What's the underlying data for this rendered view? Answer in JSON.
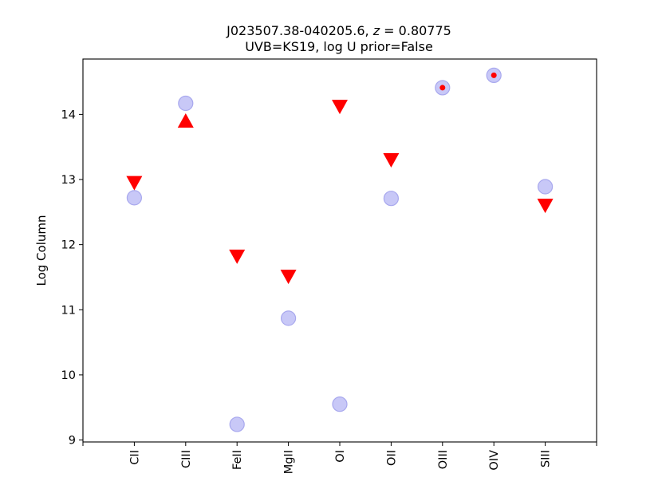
{
  "chart_data": {
    "type": "scatter",
    "title_prefix": "J023507.38-040205.6, ",
    "title_z_symbol": "z",
    "title_z_value": " = 0.80775",
    "subtitle": "UVB=KS19, log U prior=False",
    "xlabel": "",
    "ylabel": "Log Column",
    "categories": [
      "CII",
      "CIII",
      "FeII",
      "MgII",
      "OI",
      "OII",
      "OIII",
      "OIV",
      "SIII"
    ],
    "xlim": [
      -1,
      9
    ],
    "ylim": [
      8.97,
      14.85
    ],
    "yticks": [
      9,
      10,
      11,
      12,
      13,
      14
    ],
    "grid": false,
    "series": [
      {
        "marker": "circle",
        "color": "#c8c8f7",
        "edge_color": "#a8a8ee",
        "points": [
          {
            "x": "CII",
            "y": 12.72
          },
          {
            "x": "CIII",
            "y": 14.17
          },
          {
            "x": "FeII",
            "y": 9.24
          },
          {
            "x": "MgII",
            "y": 10.87
          },
          {
            "x": "OI",
            "y": 9.55
          },
          {
            "x": "OII",
            "y": 12.71
          },
          {
            "x": "OIII",
            "y": 14.41
          },
          {
            "x": "OIV",
            "y": 14.6
          },
          {
            "x": "SIII",
            "y": 12.89
          }
        ]
      },
      {
        "marker": "triangle-down",
        "color": "#ff0000",
        "points": [
          {
            "x": "CII",
            "y": 12.95
          },
          {
            "x": "FeII",
            "y": 11.82
          },
          {
            "x": "MgII",
            "y": 11.51
          },
          {
            "x": "OI",
            "y": 14.12
          },
          {
            "x": "OII",
            "y": 13.3
          },
          {
            "x": "SIII",
            "y": 12.6
          }
        ]
      },
      {
        "marker": "triangle-up",
        "color": "#ff0000",
        "points": [
          {
            "x": "CIII",
            "y": 13.9
          }
        ]
      },
      {
        "marker": "dot",
        "color": "#ff0000",
        "points": [
          {
            "x": "OIII",
            "y": 14.41
          },
          {
            "x": "OIV",
            "y": 14.6
          }
        ]
      }
    ]
  }
}
